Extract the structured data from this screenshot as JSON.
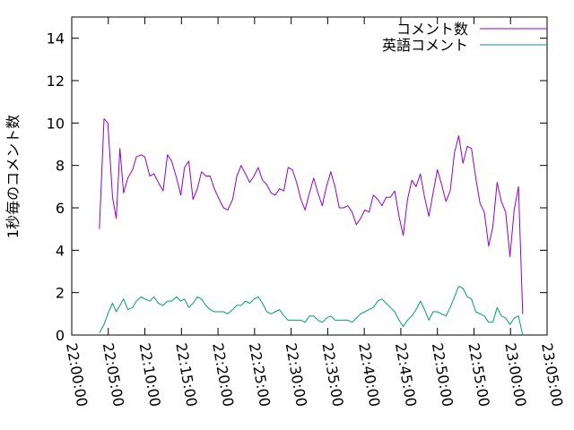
{
  "chart_data": {
    "type": "line",
    "ylabel": "1秒毎のコメント数",
    "xlim": [
      "22:00:00",
      "23:05:00"
    ],
    "ylim": [
      0,
      15
    ],
    "yticks": [
      0,
      2,
      4,
      6,
      8,
      10,
      12,
      14
    ],
    "xticks": [
      "22:00:00",
      "22:05:00",
      "22:10:00",
      "22:15:00",
      "22:20:00",
      "22:25:00",
      "22:30:00",
      "22:35:00",
      "22:40:00",
      "22:45:00",
      "22:50:00",
      "22:55:00",
      "23:00:00",
      "23:05:00"
    ],
    "grid": false,
    "legend_position": "top-right",
    "series": [
      {
        "name": "コメント数",
        "color": "#9400d3",
        "points": [
          [
            "22:03:47",
            5.0
          ],
          [
            "22:04:25",
            10.2
          ],
          [
            "22:04:56",
            10.0
          ],
          [
            "22:05:35",
            6.5
          ],
          [
            "22:06:05",
            5.5
          ],
          [
            "22:06:35",
            8.8
          ],
          [
            "22:07:05",
            6.7
          ],
          [
            "22:07:40",
            7.4
          ],
          [
            "22:08:20",
            7.8
          ],
          [
            "22:08:50",
            8.4
          ],
          [
            "22:09:30",
            8.5
          ],
          [
            "22:10:00",
            8.4
          ],
          [
            "22:10:40",
            7.5
          ],
          [
            "22:11:15",
            7.6
          ],
          [
            "22:11:50",
            7.2
          ],
          [
            "22:12:30",
            6.8
          ],
          [
            "22:13:05",
            8.5
          ],
          [
            "22:13:40",
            8.2
          ],
          [
            "22:14:20",
            7.4
          ],
          [
            "22:14:55",
            6.6
          ],
          [
            "22:15:25",
            7.9
          ],
          [
            "22:16:00",
            8.2
          ],
          [
            "22:16:35",
            6.4
          ],
          [
            "22:17:10",
            6.9
          ],
          [
            "22:17:45",
            7.7
          ],
          [
            "22:18:20",
            7.5
          ],
          [
            "22:18:55",
            7.5
          ],
          [
            "22:19:30",
            6.9
          ],
          [
            "22:20:10",
            6.4
          ],
          [
            "22:20:45",
            6.0
          ],
          [
            "22:21:20",
            5.9
          ],
          [
            "22:22:00",
            6.4
          ],
          [
            "22:22:35",
            7.5
          ],
          [
            "22:23:10",
            8.0
          ],
          [
            "22:23:45",
            7.6
          ],
          [
            "22:24:20",
            7.2
          ],
          [
            "22:24:55",
            7.5
          ],
          [
            "22:25:30",
            7.9
          ],
          [
            "22:26:05",
            7.3
          ],
          [
            "22:26:40",
            7.1
          ],
          [
            "22:27:15",
            6.7
          ],
          [
            "22:27:50",
            6.6
          ],
          [
            "22:28:25",
            6.9
          ],
          [
            "22:29:00",
            6.8
          ],
          [
            "22:29:35",
            7.9
          ],
          [
            "22:30:10",
            7.8
          ],
          [
            "22:30:45",
            7.2
          ],
          [
            "22:31:20",
            6.4
          ],
          [
            "22:31:55",
            5.9
          ],
          [
            "22:32:30",
            6.7
          ],
          [
            "22:33:05",
            7.4
          ],
          [
            "22:33:40",
            6.7
          ],
          [
            "22:34:15",
            6.1
          ],
          [
            "22:34:50",
            7.0
          ],
          [
            "22:35:25",
            7.7
          ],
          [
            "22:36:00",
            7.0
          ],
          [
            "22:36:35",
            6.0
          ],
          [
            "22:37:10",
            6.0
          ],
          [
            "22:37:45",
            6.1
          ],
          [
            "22:38:20",
            5.8
          ],
          [
            "22:38:55",
            5.2
          ],
          [
            "22:39:30",
            5.5
          ],
          [
            "22:40:05",
            5.9
          ],
          [
            "22:40:40",
            5.8
          ],
          [
            "22:41:15",
            6.6
          ],
          [
            "22:41:50",
            6.4
          ],
          [
            "22:42:25",
            6.1
          ],
          [
            "22:43:00",
            6.5
          ],
          [
            "22:43:35",
            6.5
          ],
          [
            "22:44:10",
            6.8
          ],
          [
            "22:44:45",
            5.6
          ],
          [
            "22:45:20",
            4.7
          ],
          [
            "22:45:55",
            6.4
          ],
          [
            "22:46:30",
            7.3
          ],
          [
            "22:47:05",
            7.0
          ],
          [
            "22:47:40",
            7.6
          ],
          [
            "22:48:15",
            6.5
          ],
          [
            "22:48:50",
            5.6
          ],
          [
            "22:49:25",
            6.7
          ],
          [
            "22:50:00",
            7.8
          ],
          [
            "22:50:35",
            7.1
          ],
          [
            "22:51:10",
            6.3
          ],
          [
            "22:51:45",
            6.8
          ],
          [
            "22:52:20",
            8.6
          ],
          [
            "22:52:55",
            9.4
          ],
          [
            "22:53:30",
            8.1
          ],
          [
            "22:54:05",
            8.9
          ],
          [
            "22:54:40",
            8.8
          ],
          [
            "22:55:15",
            7.4
          ],
          [
            "22:55:50",
            6.2
          ],
          [
            "22:56:25",
            5.8
          ],
          [
            "22:57:00",
            4.2
          ],
          [
            "22:57:35",
            5.1
          ],
          [
            "22:58:10",
            7.2
          ],
          [
            "22:58:45",
            6.3
          ],
          [
            "22:59:20",
            5.8
          ],
          [
            "22:59:55",
            3.7
          ],
          [
            "23:00:30",
            5.9
          ],
          [
            "23:01:05",
            7.0
          ],
          [
            "23:01:40",
            1.0
          ]
        ]
      },
      {
        "name": "英語コメント",
        "color": "#009e73",
        "points": [
          [
            "22:03:47",
            0.1
          ],
          [
            "22:04:25",
            0.5
          ],
          [
            "22:04:56",
            1.0
          ],
          [
            "22:05:35",
            1.5
          ],
          [
            "22:06:05",
            1.1
          ],
          [
            "22:06:35",
            1.4
          ],
          [
            "22:07:05",
            1.7
          ],
          [
            "22:07:40",
            1.2
          ],
          [
            "22:08:20",
            1.3
          ],
          [
            "22:08:50",
            1.6
          ],
          [
            "22:09:30",
            1.8
          ],
          [
            "22:10:00",
            1.7
          ],
          [
            "22:10:40",
            1.6
          ],
          [
            "22:11:15",
            1.8
          ],
          [
            "22:11:50",
            1.5
          ],
          [
            "22:12:30",
            1.4
          ],
          [
            "22:13:05",
            1.6
          ],
          [
            "22:13:40",
            1.6
          ],
          [
            "22:14:20",
            1.8
          ],
          [
            "22:14:55",
            1.6
          ],
          [
            "22:15:25",
            1.7
          ],
          [
            "22:16:00",
            1.3
          ],
          [
            "22:16:35",
            1.5
          ],
          [
            "22:17:10",
            1.8
          ],
          [
            "22:17:45",
            1.7
          ],
          [
            "22:18:20",
            1.4
          ],
          [
            "22:18:55",
            1.2
          ],
          [
            "22:19:30",
            1.1
          ],
          [
            "22:20:10",
            1.1
          ],
          [
            "22:20:45",
            1.1
          ],
          [
            "22:21:20",
            1.0
          ],
          [
            "22:22:00",
            1.2
          ],
          [
            "22:22:35",
            1.4
          ],
          [
            "22:23:10",
            1.4
          ],
          [
            "22:23:45",
            1.6
          ],
          [
            "22:24:20",
            1.5
          ],
          [
            "22:24:55",
            1.7
          ],
          [
            "22:25:30",
            1.8
          ],
          [
            "22:26:05",
            1.5
          ],
          [
            "22:26:40",
            1.1
          ],
          [
            "22:27:15",
            1.0
          ],
          [
            "22:27:50",
            1.1
          ],
          [
            "22:28:25",
            1.2
          ],
          [
            "22:29:00",
            0.9
          ],
          [
            "22:29:35",
            0.7
          ],
          [
            "22:30:10",
            0.7
          ],
          [
            "22:30:45",
            0.7
          ],
          [
            "22:31:20",
            0.7
          ],
          [
            "22:31:55",
            0.6
          ],
          [
            "22:32:30",
            0.9
          ],
          [
            "22:33:05",
            0.9
          ],
          [
            "22:33:40",
            0.7
          ],
          [
            "22:34:15",
            0.6
          ],
          [
            "22:34:50",
            0.8
          ],
          [
            "22:35:25",
            0.9
          ],
          [
            "22:36:00",
            0.7
          ],
          [
            "22:36:35",
            0.7
          ],
          [
            "22:37:10",
            0.7
          ],
          [
            "22:37:45",
            0.7
          ],
          [
            "22:38:20",
            0.6
          ],
          [
            "22:38:55",
            0.8
          ],
          [
            "22:39:30",
            1.0
          ],
          [
            "22:40:05",
            1.1
          ],
          [
            "22:40:40",
            1.2
          ],
          [
            "22:41:15",
            1.3
          ],
          [
            "22:41:50",
            1.6
          ],
          [
            "22:42:25",
            1.7
          ],
          [
            "22:43:00",
            1.5
          ],
          [
            "22:43:35",
            1.3
          ],
          [
            "22:44:10",
            1.1
          ],
          [
            "22:44:45",
            0.7
          ],
          [
            "22:45:20",
            0.4
          ],
          [
            "22:45:55",
            0.7
          ],
          [
            "22:46:30",
            0.9
          ],
          [
            "22:47:05",
            1.2
          ],
          [
            "22:47:40",
            1.6
          ],
          [
            "22:48:15",
            1.2
          ],
          [
            "22:48:50",
            0.7
          ],
          [
            "22:49:25",
            1.1
          ],
          [
            "22:50:00",
            1.1
          ],
          [
            "22:50:35",
            1.0
          ],
          [
            "22:51:10",
            0.9
          ],
          [
            "22:51:45",
            1.3
          ],
          [
            "22:52:20",
            1.8
          ],
          [
            "22:52:55",
            2.3
          ],
          [
            "22:53:30",
            2.2
          ],
          [
            "22:54:05",
            1.8
          ],
          [
            "22:54:40",
            1.7
          ],
          [
            "22:55:15",
            1.1
          ],
          [
            "22:55:50",
            1.0
          ],
          [
            "22:56:25",
            0.9
          ],
          [
            "22:57:00",
            0.6
          ],
          [
            "22:57:35",
            0.6
          ],
          [
            "22:58:10",
            1.3
          ],
          [
            "22:58:45",
            0.9
          ],
          [
            "22:59:20",
            0.8
          ],
          [
            "22:59:55",
            0.5
          ],
          [
            "23:00:30",
            0.8
          ],
          [
            "23:01:05",
            0.9
          ],
          [
            "23:01:40",
            0.0
          ]
        ]
      }
    ]
  }
}
